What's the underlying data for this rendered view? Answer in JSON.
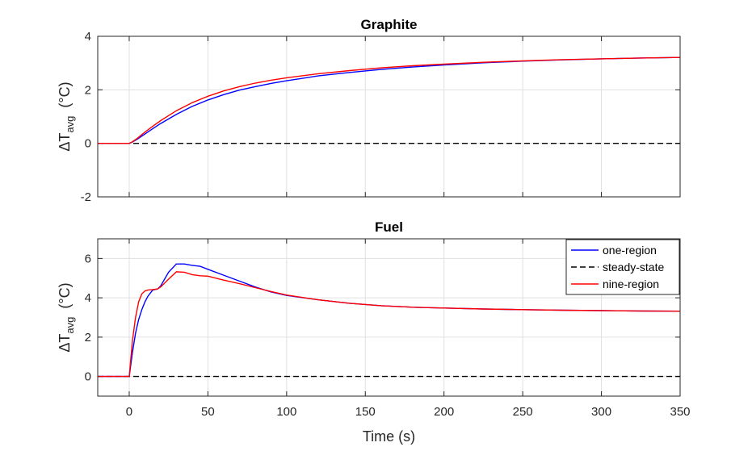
{
  "chart_data": [
    {
      "type": "line",
      "title": "Graphite",
      "xlabel": "",
      "ylabel_main": "ΔT",
      "ylabel_sub": "avg",
      "ylabel_unit": "(°C)",
      "xlim": [
        -20,
        350
      ],
      "ylim": [
        -2,
        4
      ],
      "xticks": [
        0,
        50,
        100,
        150,
        200,
        250,
        300,
        350
      ],
      "yticks": [
        -2,
        0,
        2,
        4
      ],
      "xtick_labels_visible": false,
      "grid": true,
      "legend": null,
      "series": [
        {
          "name": "one-region",
          "color": "#0000ff",
          "dash": "",
          "x": [
            -20,
            0,
            2,
            5,
            10,
            15,
            20,
            30,
            40,
            50,
            60,
            70,
            80,
            90,
            100,
            120,
            140,
            160,
            180,
            200,
            225,
            250,
            275,
            300,
            325,
            350
          ],
          "y": [
            0,
            0,
            0.05,
            0.15,
            0.35,
            0.55,
            0.74,
            1.08,
            1.38,
            1.62,
            1.82,
            1.99,
            2.12,
            2.24,
            2.34,
            2.52,
            2.65,
            2.76,
            2.85,
            2.93,
            3.01,
            3.07,
            3.12,
            3.16,
            3.19,
            3.21
          ]
        },
        {
          "name": "steady-state",
          "color": "#000000",
          "dash": "7,4",
          "x": [
            -20,
            350
          ],
          "y": [
            0,
            0
          ]
        },
        {
          "name": "nine-region",
          "color": "#ff0000",
          "dash": "",
          "x": [
            -20,
            0,
            2,
            5,
            10,
            15,
            20,
            30,
            40,
            50,
            60,
            70,
            80,
            90,
            100,
            120,
            140,
            160,
            180,
            200,
            225,
            250,
            275,
            300,
            325,
            350
          ],
          "y": [
            0,
            0,
            0.06,
            0.18,
            0.42,
            0.64,
            0.85,
            1.22,
            1.52,
            1.76,
            1.96,
            2.12,
            2.25,
            2.36,
            2.45,
            2.6,
            2.72,
            2.82,
            2.9,
            2.96,
            3.03,
            3.08,
            3.13,
            3.16,
            3.19,
            3.21
          ]
        }
      ]
    },
    {
      "type": "line",
      "title": "Fuel",
      "xlabel": "Time (s)",
      "ylabel_main": "ΔT",
      "ylabel_sub": "avg",
      "ylabel_unit": "(°C)",
      "xlim": [
        -20,
        350
      ],
      "ylim": [
        -1,
        7
      ],
      "xticks": [
        0,
        50,
        100,
        150,
        200,
        250,
        300,
        350
      ],
      "yticks": [
        0,
        2,
        4,
        6
      ],
      "xtick_labels_visible": true,
      "grid": true,
      "legend": "top-right",
      "series": [
        {
          "name": "one-region",
          "color": "#0000ff",
          "dash": "",
          "x": [
            -20,
            0,
            2,
            4,
            6,
            8,
            10,
            12,
            15,
            18,
            20,
            25,
            30,
            35,
            40,
            45,
            50,
            60,
            70,
            80,
            90,
            100,
            120,
            140,
            160,
            180,
            200,
            225,
            250,
            275,
            300,
            325,
            350
          ],
          "y": [
            0,
            0,
            1.2,
            2.2,
            2.9,
            3.4,
            3.8,
            4.1,
            4.4,
            4.45,
            4.6,
            5.3,
            5.72,
            5.72,
            5.65,
            5.6,
            5.45,
            5.15,
            4.85,
            4.55,
            4.3,
            4.12,
            3.9,
            3.72,
            3.6,
            3.52,
            3.48,
            3.43,
            3.4,
            3.37,
            3.35,
            3.33,
            3.32
          ]
        },
        {
          "name": "steady-state",
          "color": "#000000",
          "dash": "7,4",
          "x": [
            -20,
            350
          ],
          "y": [
            0,
            0
          ]
        },
        {
          "name": "nine-region",
          "color": "#ff0000",
          "dash": "",
          "x": [
            -20,
            0,
            2,
            4,
            6,
            8,
            10,
            12,
            15,
            18,
            20,
            25,
            30,
            35,
            40,
            45,
            50,
            60,
            70,
            80,
            90,
            100,
            120,
            140,
            160,
            180,
            200,
            225,
            250,
            275,
            300,
            325,
            350
          ],
          "y": [
            0,
            0,
            1.8,
            3.0,
            3.8,
            4.2,
            4.35,
            4.4,
            4.42,
            4.45,
            4.55,
            4.95,
            5.32,
            5.3,
            5.18,
            5.12,
            5.1,
            4.9,
            4.72,
            4.52,
            4.32,
            4.14,
            3.9,
            3.72,
            3.6,
            3.52,
            3.48,
            3.43,
            3.4,
            3.37,
            3.35,
            3.33,
            3.32
          ]
        }
      ]
    }
  ]
}
